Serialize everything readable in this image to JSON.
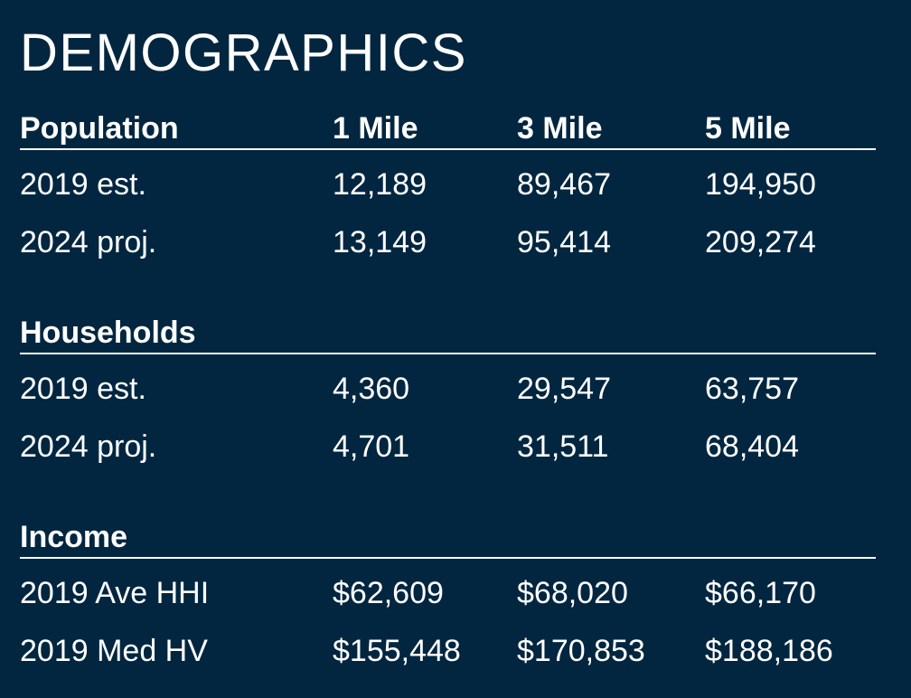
{
  "title": "DEMOGRAPHICS",
  "columns": [
    "1 Mile",
    "3 Mile",
    "5 Mile"
  ],
  "sections": [
    {
      "heading": "Population",
      "rows": [
        {
          "label": "2019 est.",
          "values": [
            "12,189",
            "89,467",
            "194,950"
          ]
        },
        {
          "label": "2024 proj.",
          "values": [
            "13,149",
            "95,414",
            "209,274"
          ]
        }
      ]
    },
    {
      "heading": "Households",
      "rows": [
        {
          "label": "2019 est.",
          "values": [
            "4,360",
            "29,547",
            "63,757"
          ]
        },
        {
          "label": "2024 proj.",
          "values": [
            "4,701",
            "31,511",
            "68,404"
          ]
        }
      ]
    },
    {
      "heading": "Income",
      "rows": [
        {
          "label": "2019 Ave HHI",
          "values": [
            "$62,609",
            "$68,020",
            "$66,170"
          ]
        },
        {
          "label": "2019 Med HV",
          "values": [
            "$155,448",
            "$170,853",
            "$188,186"
          ]
        }
      ]
    }
  ]
}
